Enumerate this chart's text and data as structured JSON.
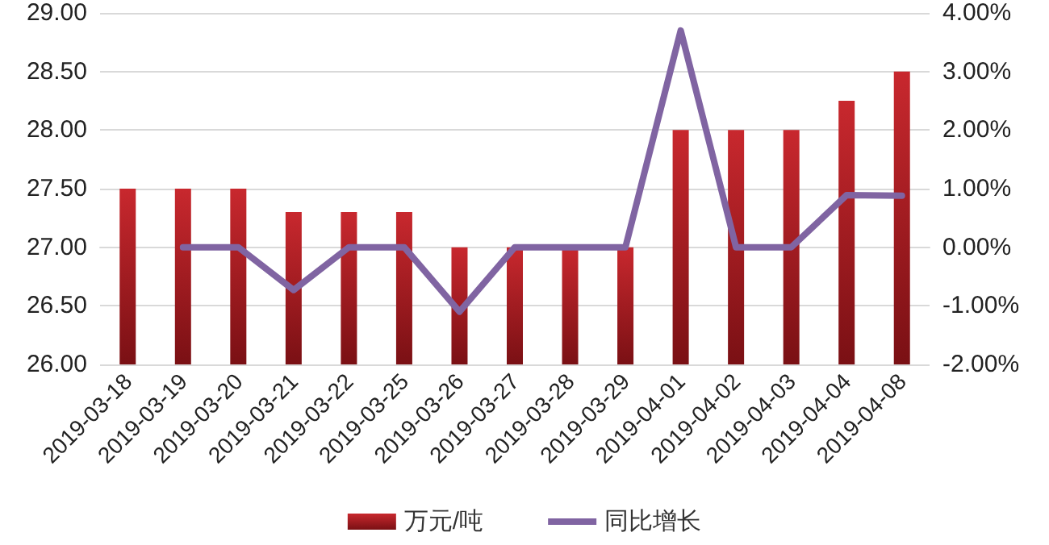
{
  "chart_data": {
    "type": "bar",
    "categories": [
      "2019-03-18",
      "2019-03-19",
      "2019-03-20",
      "2019-03-21",
      "2019-03-22",
      "2019-03-25",
      "2019-03-26",
      "2019-03-27",
      "2019-03-28",
      "2019-03-29",
      "2019-04-01",
      "2019-04-02",
      "2019-04-03",
      "2019-04-04",
      "2019-04-08"
    ],
    "series": [
      {
        "name": "万元/吨",
        "color": "#c8282e",
        "values": [
          27.5,
          27.5,
          27.5,
          27.3,
          27.3,
          27.3,
          27.0,
          27.0,
          27.0,
          27.0,
          28.0,
          28.0,
          28.0,
          28.25,
          28.5
        ]
      },
      {
        "name": "同比增长",
        "type": "line",
        "axis": "y2",
        "color": "#8064a2",
        "values": [
          null,
          0,
          0,
          -0.73,
          0,
          0,
          -1.1,
          0,
          0,
          0,
          3.7,
          0,
          0,
          0.89,
          0.88
        ]
      }
    ],
    "ylim": [
      26,
      29
    ],
    "yticks": [
      {
        "value": 26,
        "label": "26.00"
      },
      {
        "value": 26.5,
        "label": "26.50"
      },
      {
        "value": 27,
        "label": "27.00"
      },
      {
        "value": 27.5,
        "label": "27.50"
      },
      {
        "value": 28,
        "label": "28.00"
      },
      {
        "value": 28.5,
        "label": "28.50"
      },
      {
        "value": 29,
        "label": "29.00"
      }
    ],
    "y2lim": [
      -2,
      4
    ],
    "y2ticks": [
      {
        "value": -2,
        "label": "-2.00%"
      },
      {
        "value": -1,
        "label": "-1.00%"
      },
      {
        "value": 0,
        "label": "0.00%"
      },
      {
        "value": 1,
        "label": "1.00%"
      },
      {
        "value": 2,
        "label": "2.00%"
      },
      {
        "value": 3,
        "label": "3.00%"
      },
      {
        "value": 4,
        "label": "4.00%"
      }
    ],
    "grid": "y",
    "legend": "bottom",
    "marker": "none"
  }
}
